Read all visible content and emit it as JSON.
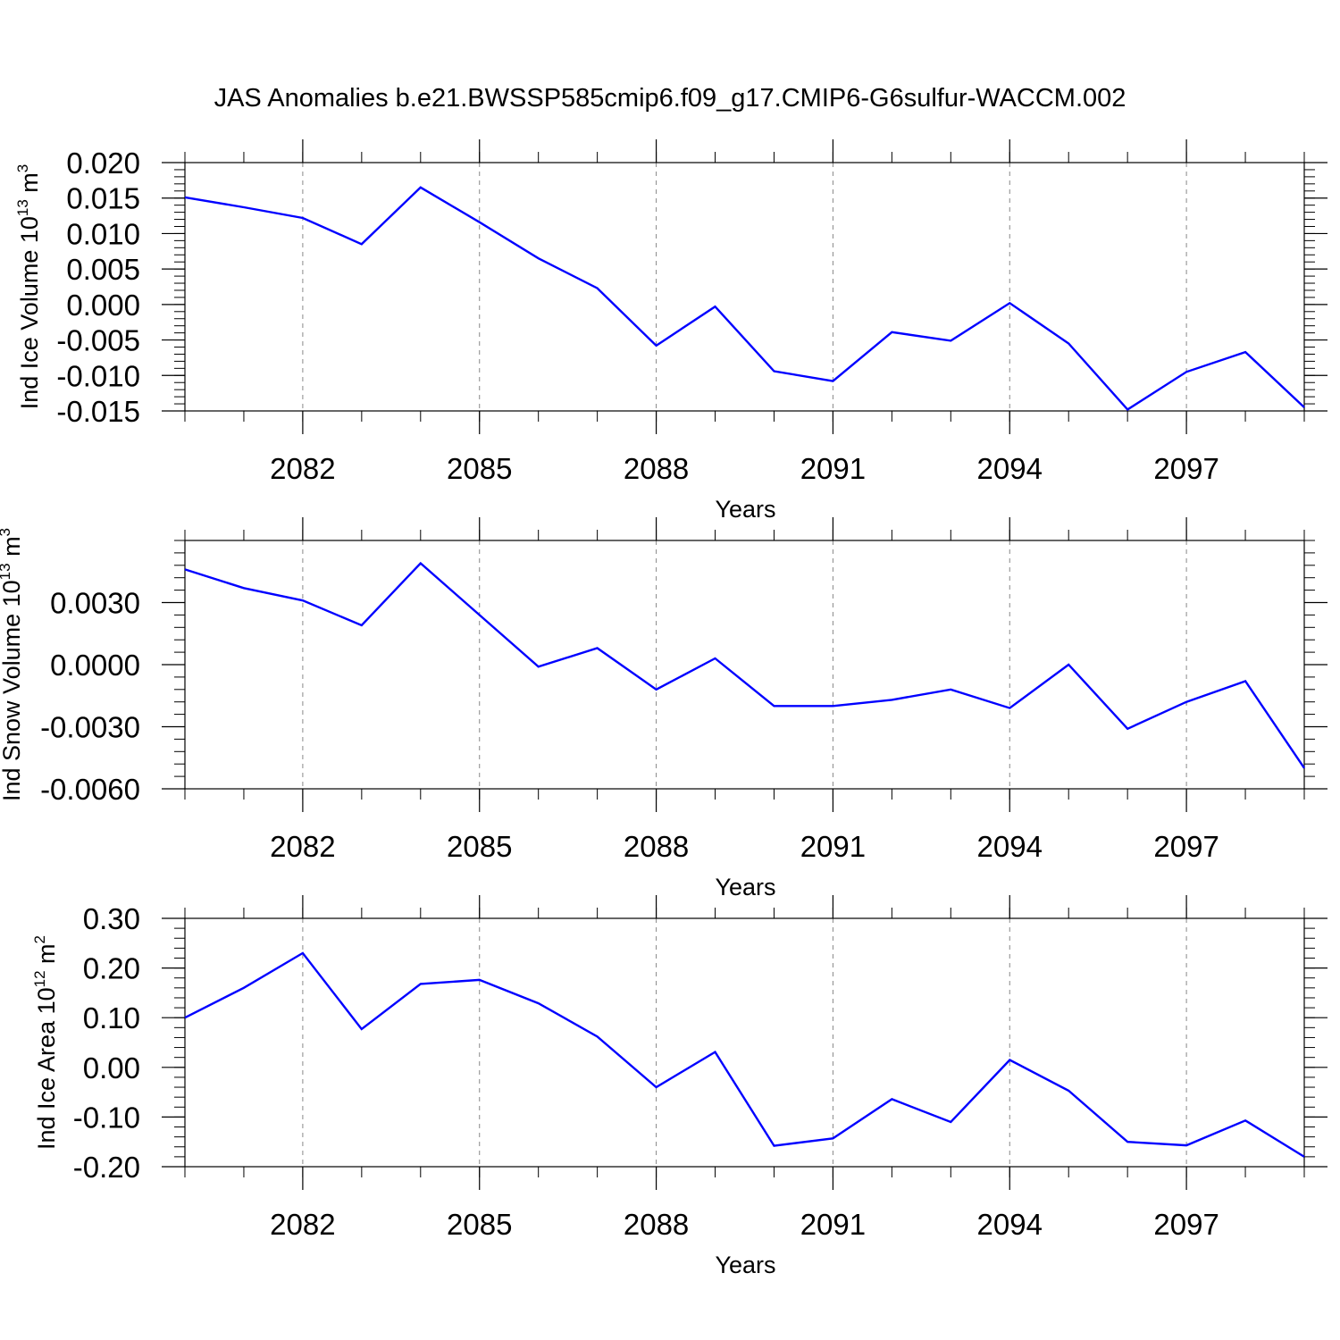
{
  "figure": {
    "title": "JAS Anomalies b.e21.BWSSP585cmip6.f09_g17.CMIP6-G6sulfur-WACCM.002"
  },
  "colors": {
    "line": "#0000ff",
    "frame": "#000000",
    "grid": "#888888"
  },
  "chart_data": [
    {
      "type": "line",
      "ylabel_main": "Ind Ice Volume 10",
      "ylabel_exp": "13",
      "ylabel_unit": " m",
      "ylabel_unit_exp": "3",
      "xlabel": "Years",
      "xlim": [
        2080,
        2099
      ],
      "ylim": [
        -0.015,
        0.02
      ],
      "xticks": [
        2082,
        2085,
        2088,
        2091,
        2094,
        2097
      ],
      "xtick_labels": [
        "2082",
        "2085",
        "2088",
        "2091",
        "2094",
        "2097"
      ],
      "yticks": [
        -0.015,
        -0.01,
        -0.005,
        0.0,
        0.005,
        0.01,
        0.015,
        0.02
      ],
      "ytick_labels": [
        "-0.015",
        "-0.010",
        "-0.005",
        "0.000",
        "0.005",
        "0.010",
        "0.015",
        "0.020"
      ],
      "grid": "x-dashed",
      "x": [
        2080,
        2081,
        2082,
        2083,
        2084,
        2085,
        2086,
        2087,
        2088,
        2089,
        2090,
        2091,
        2092,
        2093,
        2094,
        2095,
        2096,
        2097,
        2098,
        2099
      ],
      "values": [
        0.0151,
        0.0137,
        0.0122,
        0.0085,
        0.0165,
        0.0116,
        0.0065,
        0.0023,
        -0.0058,
        -0.0003,
        -0.0094,
        -0.0108,
        -0.0039,
        -0.0051,
        0.0002,
        -0.0055,
        -0.0148,
        -0.0095,
        -0.0067,
        -0.0145
      ]
    },
    {
      "type": "line",
      "ylabel_main": "Ind Snow Volume 10",
      "ylabel_exp": "13",
      "ylabel_unit": " m",
      "ylabel_unit_exp": "3",
      "xlabel": "Years",
      "xlim": [
        2080,
        2099
      ],
      "ylim": [
        -0.006,
        0.006
      ],
      "xticks": [
        2082,
        2085,
        2088,
        2091,
        2094,
        2097
      ],
      "xtick_labels": [
        "2082",
        "2085",
        "2088",
        "2091",
        "2094",
        "2097"
      ],
      "yticks": [
        -0.006,
        -0.003,
        0.0,
        0.003
      ],
      "ytick_labels": [
        "-0.0060",
        "-0.0030",
        "0.0000",
        "0.0030"
      ],
      "grid": "x-dashed",
      "x": [
        2080,
        2081,
        2082,
        2083,
        2084,
        2085,
        2086,
        2087,
        2088,
        2089,
        2090,
        2091,
        2092,
        2093,
        2094,
        2095,
        2096,
        2097,
        2098,
        2099
      ],
      "values": [
        0.0046,
        0.0037,
        0.0031,
        0.0019,
        0.0049,
        0.0024,
        -0.0001,
        0.0008,
        -0.0012,
        0.0003,
        -0.002,
        -0.002,
        -0.0017,
        -0.0012,
        -0.0021,
        0.0,
        -0.0031,
        -0.0018,
        -0.0008,
        -0.005
      ]
    },
    {
      "type": "line",
      "ylabel_main": "Ind Ice Area 10",
      "ylabel_exp": "12",
      "ylabel_unit": " m",
      "ylabel_unit_exp": "2",
      "xlabel": "Years",
      "xlim": [
        2080,
        2099
      ],
      "ylim": [
        -0.2,
        0.3
      ],
      "xticks": [
        2082,
        2085,
        2088,
        2091,
        2094,
        2097
      ],
      "xtick_labels": [
        "2082",
        "2085",
        "2088",
        "2091",
        "2094",
        "2097"
      ],
      "yticks": [
        -0.2,
        -0.1,
        0.0,
        0.1,
        0.2,
        0.3
      ],
      "ytick_labels": [
        "-0.20",
        "-0.10",
        "0.00",
        "0.10",
        "0.20",
        "0.30"
      ],
      "grid": "x-dashed",
      "x": [
        2080,
        2081,
        2082,
        2083,
        2084,
        2085,
        2086,
        2087,
        2088,
        2089,
        2090,
        2091,
        2092,
        2093,
        2094,
        2095,
        2096,
        2097,
        2098,
        2099
      ],
      "values": [
        0.1,
        0.16,
        0.23,
        0.077,
        0.168,
        0.176,
        0.129,
        0.062,
        -0.04,
        0.031,
        -0.158,
        -0.143,
        -0.064,
        -0.11,
        0.015,
        -0.047,
        -0.15,
        -0.157,
        -0.107,
        -0.18
      ]
    }
  ]
}
